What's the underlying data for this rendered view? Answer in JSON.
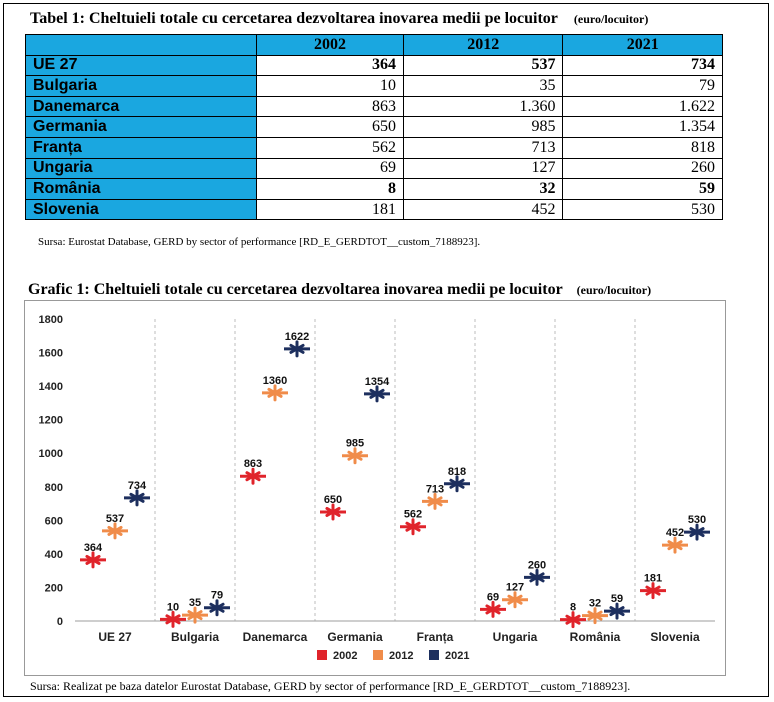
{
  "table": {
    "title": "Tabel 1: Cheltuieli totale cu cercetarea dezvoltarea inovarea medii pe locuitor",
    "unit": "(euro/locuitor)",
    "headers": [
      "",
      "2002",
      "2012",
      "2021"
    ],
    "rows": [
      {
        "label": "UE 27",
        "values": [
          "364",
          "537",
          "734"
        ],
        "bold": true
      },
      {
        "label": "Bulgaria",
        "values": [
          "10",
          "35",
          "79"
        ],
        "bold": false
      },
      {
        "label": "Danemarca",
        "values": [
          "863",
          "1.360",
          "1.622"
        ],
        "bold": false
      },
      {
        "label": "Germania",
        "values": [
          "650",
          "985",
          "1.354"
        ],
        "bold": false
      },
      {
        "label": "Franța",
        "values": [
          "562",
          "713",
          "818"
        ],
        "bold": false
      },
      {
        "label": "Ungaria",
        "values": [
          "69",
          "127",
          "260"
        ],
        "bold": false
      },
      {
        "label": "România",
        "values": [
          "8",
          "32",
          "59"
        ],
        "bold": true
      },
      {
        "label": "Slovenia",
        "values": [
          "181",
          "452",
          "530"
        ],
        "bold": false
      }
    ],
    "source": "Sursa: Eurostat Database, GERD by sector of performance [RD_E_GERDTOT__custom_7188923]."
  },
  "chart_title": "Grafic 1: Cheltuieli totale cu cercetarea dezvoltarea inovarea medii pe locuitor",
  "chart_unit": "(euro/locuitor)",
  "chart_source": "Sursa: Realizat pe baza datelor Eurostat Database, GERD by sector of performance [RD_E_GERDTOT__custom_7188923].",
  "chart_data": {
    "type": "scatter",
    "categories": [
      "UE 27",
      "Bulgaria",
      "Danemarca",
      "Germania",
      "Franța",
      "Ungaria",
      "România",
      "Slovenia"
    ],
    "series": [
      {
        "name": "2002",
        "color": "#e0242b",
        "values": [
          364,
          10,
          863,
          650,
          562,
          69,
          8,
          181
        ]
      },
      {
        "name": "2012",
        "color": "#f08c4a",
        "values": [
          537,
          35,
          1360,
          985,
          713,
          127,
          32,
          452
        ]
      },
      {
        "name": "2021",
        "color": "#1d2f5e",
        "values": [
          734,
          79,
          1622,
          1354,
          818,
          260,
          59,
          530
        ]
      }
    ],
    "ylim": [
      0,
      1800
    ],
    "yticks": [
      0,
      200,
      400,
      600,
      800,
      1000,
      1200,
      1400,
      1600,
      1800
    ],
    "legend_position": "bottom",
    "grid": false
  }
}
